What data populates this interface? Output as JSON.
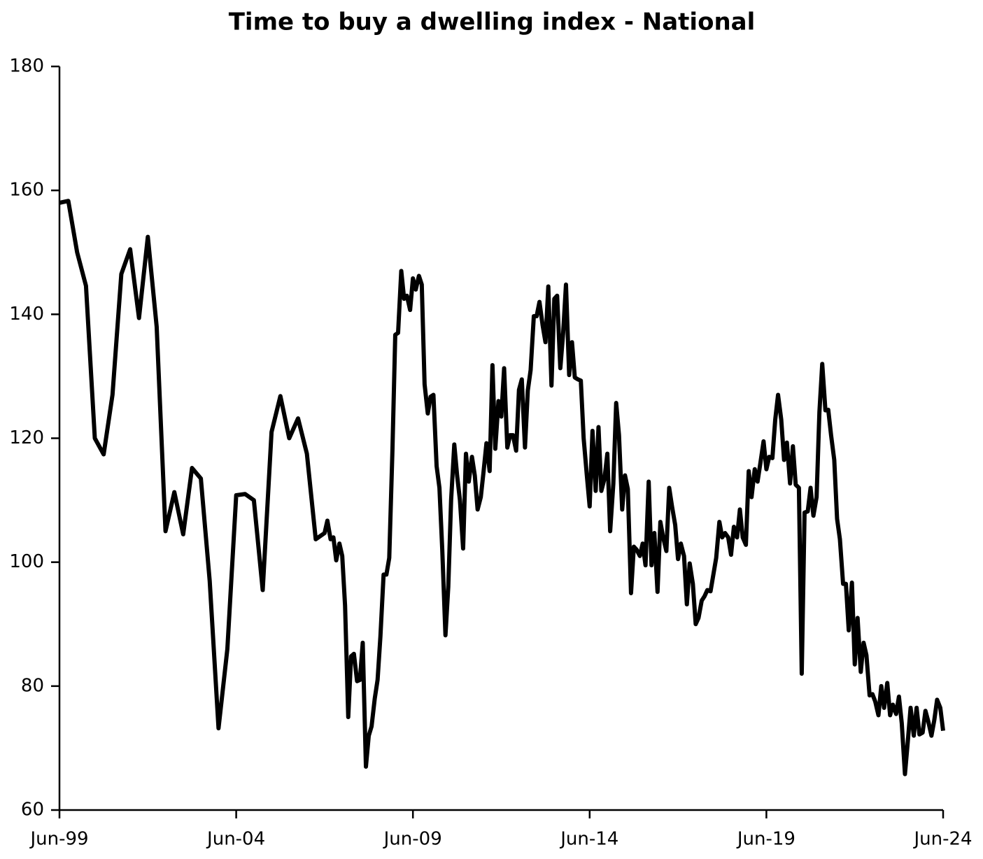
{
  "chart_data": {
    "type": "line",
    "title": "Time to buy a dwelling index - National",
    "x": [
      1999.5,
      1999.75,
      2000,
      2000.25,
      2000.5,
      2000.75,
      2001,
      2001.25,
      2001.5,
      2001.75,
      2002,
      2002.25,
      2002.5,
      2002.75,
      2003,
      2003.25,
      2003.5,
      2003.75,
      2004,
      2004.25,
      2004.5,
      2004.75,
      2005,
      2005.25,
      2005.5,
      2005.75,
      2006,
      2006.25,
      2006.5,
      2006.75,
      2007,
      2007.08,
      2007.17,
      2007.25,
      2007.33,
      2007.42,
      2007.5,
      2007.58,
      2007.67,
      2007.75,
      2007.83,
      2007.92,
      2008,
      2008.08,
      2008.17,
      2008.25,
      2008.33,
      2008.42,
      2008.5,
      2008.58,
      2008.67,
      2008.75,
      2008.83,
      2008.92,
      2009,
      2009.08,
      2009.17,
      2009.25,
      2009.33,
      2009.42,
      2009.5,
      2009.58,
      2009.67,
      2009.75,
      2009.83,
      2009.92,
      2010,
      2010.08,
      2010.17,
      2010.25,
      2010.33,
      2010.42,
      2010.5,
      2010.58,
      2010.67,
      2010.75,
      2010.83,
      2010.92,
      2011,
      2011.08,
      2011.17,
      2011.25,
      2011.33,
      2011.42,
      2011.5,
      2011.58,
      2011.67,
      2011.75,
      2011.83,
      2011.92,
      2012,
      2012.08,
      2012.17,
      2012.25,
      2012.33,
      2012.42,
      2012.5,
      2012.58,
      2012.67,
      2012.75,
      2012.83,
      2012.92,
      2013,
      2013.08,
      2013.17,
      2013.25,
      2013.33,
      2013.42,
      2013.5,
      2013.58,
      2013.67,
      2013.75,
      2013.83,
      2013.92,
      2014,
      2014.08,
      2014.17,
      2014.25,
      2014.33,
      2014.42,
      2014.5,
      2014.58,
      2014.67,
      2014.75,
      2014.83,
      2014.92,
      2015,
      2015.08,
      2015.17,
      2015.25,
      2015.33,
      2015.42,
      2015.5,
      2015.58,
      2015.67,
      2015.75,
      2015.83,
      2015.92,
      2016,
      2016.08,
      2016.17,
      2016.25,
      2016.33,
      2016.42,
      2016.5,
      2016.58,
      2016.67,
      2016.75,
      2016.83,
      2016.92,
      2017,
      2017.08,
      2017.17,
      2017.25,
      2017.33,
      2017.42,
      2017.5,
      2017.58,
      2017.67,
      2017.75,
      2017.83,
      2017.92,
      2018,
      2018.08,
      2018.17,
      2018.25,
      2018.33,
      2018.42,
      2018.5,
      2018.58,
      2018.67,
      2018.75,
      2018.83,
      2018.92,
      2019,
      2019.08,
      2019.17,
      2019.25,
      2019.33,
      2019.42,
      2019.5,
      2019.58,
      2019.67,
      2019.75,
      2019.83,
      2019.92,
      2020,
      2020.08,
      2020.17,
      2020.25,
      2020.33,
      2020.42,
      2020.5,
      2020.58,
      2020.67,
      2020.75,
      2020.83,
      2020.92,
      2021,
      2021.08,
      2021.17,
      2021.25,
      2021.33,
      2021.42,
      2021.5,
      2021.58,
      2021.67,
      2021.75,
      2021.83,
      2021.92,
      2022,
      2022.08,
      2022.17,
      2022.25,
      2022.33,
      2022.42,
      2022.5,
      2022.58,
      2022.67,
      2022.75,
      2022.83,
      2022.92,
      2023,
      2023.08,
      2023.17,
      2023.25,
      2023.33,
      2023.42,
      2023.5,
      2023.58,
      2023.67,
      2023.75,
      2023.83,
      2023.92,
      2024,
      2024.08,
      2024.17,
      2024.25,
      2024.33,
      2024.42,
      2024.5
    ],
    "series": [
      {
        "color": "#000000",
        "values": [
          158,
          158.3,
          150,
          144.6,
          120,
          117.4,
          127,
          146.5,
          150.5,
          139.4,
          152.5,
          138,
          105,
          111.3,
          104.5,
          115.2,
          113.5,
          97,
          73.2,
          86,
          110.8,
          111,
          110,
          95.5,
          121,
          126.8,
          120,
          123.2,
          117.5,
          103.7,
          104.7,
          106.7,
          103.7,
          104,
          100.3,
          103,
          101,
          93,
          75,
          84.8,
          85.2,
          80.8,
          81,
          87,
          67,
          72,
          73.5,
          78,
          81,
          88,
          98,
          98,
          100.7,
          118,
          136.7,
          137,
          147,
          142.5,
          143,
          140.7,
          145.8,
          144,
          146.2,
          144.8,
          128.7,
          124,
          126.7,
          127,
          115.5,
          112,
          102,
          88.2,
          96,
          110,
          119,
          114,
          110,
          102.2,
          117.5,
          113,
          117,
          114,
          108.5,
          110.5,
          114.7,
          119.2,
          114.7,
          131.8,
          118.3,
          126,
          123.5,
          131.3,
          118.5,
          120.5,
          120.5,
          118,
          127.8,
          129.5,
          118.5,
          127.7,
          131,
          139.7,
          139.7,
          142,
          138.2,
          135.5,
          144.5,
          128.5,
          142.5,
          143,
          131.3,
          137,
          144.8,
          130.2,
          135.5,
          129.8,
          129.5,
          129.3,
          120,
          114,
          109,
          121.2,
          111.5,
          121.8,
          111.5,
          113.5,
          117.5,
          105,
          112.7,
          125.7,
          120.5,
          108.5,
          114,
          111.8,
          95,
          102.5,
          102,
          101,
          103,
          99.5,
          113,
          99.5,
          104.7,
          95.2,
          106.5,
          104,
          101.8,
          112,
          109,
          106,
          100.5,
          103,
          101,
          93.2,
          99.8,
          96.5,
          90,
          91,
          93.8,
          94.5,
          95.5,
          95.3,
          98,
          100.7,
          106.5,
          104,
          104.7,
          104,
          101.2,
          105.7,
          104,
          108.5,
          104,
          102.8,
          114.7,
          110.5,
          115,
          113,
          116,
          119.5,
          115,
          117,
          116.8,
          123,
          127,
          123,
          116.5,
          119.3,
          112.7,
          118.7,
          112.5,
          112,
          82,
          108,
          108.2,
          112,
          107.5,
          110.5,
          124.2,
          132,
          124.5,
          124.6,
          120.5,
          116.5,
          107,
          103.7,
          96.5,
          96.5,
          89,
          96.7,
          83.5,
          91,
          82.3,
          87,
          85,
          78.5,
          78.7,
          77.5,
          75.3,
          80,
          76.5,
          80.5,
          75.3,
          77,
          75.5,
          78.3,
          74,
          65.8,
          71,
          76.5,
          72,
          76.5,
          72.2,
          72.5,
          76,
          74.3,
          72,
          74.5,
          77.8,
          76.5,
          72.8
        ]
      }
    ],
    "xlim": [
      1999.5,
      2024.5
    ],
    "xticks": [
      {
        "value": 1999.5,
        "label": "Jun-99"
      },
      {
        "value": 2004.5,
        "label": "Jun-04"
      },
      {
        "value": 2009.5,
        "label": "Jun-09"
      },
      {
        "value": 2014.5,
        "label": "Jun-14"
      },
      {
        "value": 2019.5,
        "label": "Jun-19"
      },
      {
        "value": 2024.5,
        "label": "Jun-24"
      }
    ],
    "ylim": [
      60,
      180
    ],
    "yticks": [
      60,
      80,
      100,
      120,
      140,
      160,
      180
    ],
    "grid": false
  }
}
